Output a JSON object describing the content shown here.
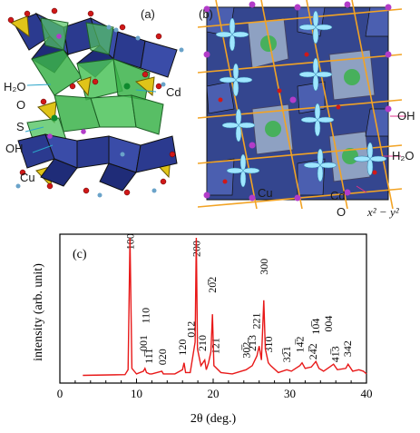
{
  "panel_a": {
    "label": "(a)",
    "annotations": {
      "h2o": "H₂O",
      "o": "O",
      "s": "S",
      "oh": "OH",
      "cu": "Cu",
      "cd": "Cd"
    }
  },
  "panel_b": {
    "label": "(b)",
    "annotations": {
      "oh": "OH",
      "h2o": "H₂O",
      "cu": "Cu",
      "cd": "Cd",
      "o": "O",
      "orbital": "x² − y²"
    }
  },
  "colors": {
    "cu_octahedra": "#2b3a8f",
    "cd_polyhedra": "#3bb34a",
    "s_tetrahedra": "#e0c419",
    "oxygen": "#d01818",
    "hydrogen": "#6aa3c9",
    "oh_atom": "#b23cc9",
    "orbital_lines": "#f2a324",
    "orbital_lobes": "#9fe6ff",
    "xrd_trace": "#e81818"
  },
  "chart_data": {
    "type": "line",
    "panel_label": "(c)",
    "xlabel": "2θ (deg.)",
    "ylabel": "intensity (arb. unit)",
    "xlim": [
      0,
      40
    ],
    "ylim": [
      0,
      1
    ],
    "xticks": [
      0,
      10,
      20,
      30,
      40
    ],
    "series": [
      {
        "points": [
          [
            3,
            0.01
          ],
          [
            8.5,
            0.015
          ],
          [
            8.9,
            0.05
          ],
          [
            9.15,
            1.0
          ],
          [
            9.4,
            0.06
          ],
          [
            10,
            0.02
          ],
          [
            10.9,
            0.04
          ],
          [
            11.1,
            0.06
          ],
          [
            11.3,
            0.03
          ],
          [
            11.7,
            0.02
          ],
          [
            12,
            0.02
          ],
          [
            13.3,
            0.04
          ],
          [
            13.5,
            0.02
          ],
          [
            15,
            0.02
          ],
          [
            16,
            0.05
          ],
          [
            16.2,
            0.1
          ],
          [
            16.4,
            0.03
          ],
          [
            17,
            0.03
          ],
          [
            17.65,
            0.25
          ],
          [
            17.8,
            1.0
          ],
          [
            17.95,
            0.2
          ],
          [
            18.4,
            0.08
          ],
          [
            18.9,
            0.12
          ],
          [
            19.1,
            0.05
          ],
          [
            19.4,
            0.1
          ],
          [
            19.7,
            0.18
          ],
          [
            19.9,
            0.45
          ],
          [
            20.1,
            0.08
          ],
          [
            21,
            0.03
          ],
          [
            22.5,
            0.02
          ],
          [
            24.3,
            0.05
          ],
          [
            25.1,
            0.08
          ],
          [
            25.7,
            0.15
          ],
          [
            26,
            0.22
          ],
          [
            26.3,
            0.12
          ],
          [
            26.6,
            0.55
          ],
          [
            26.8,
            0.2
          ],
          [
            27.2,
            0.1
          ],
          [
            27.5,
            0.08
          ],
          [
            28.5,
            0.03
          ],
          [
            29.6,
            0.05
          ],
          [
            30.2,
            0.04
          ],
          [
            31.3,
            0.08
          ],
          [
            31.6,
            0.1
          ],
          [
            32,
            0.06
          ],
          [
            32.8,
            0.07
          ],
          [
            33.4,
            0.11
          ],
          [
            33.8,
            0.06
          ],
          [
            34.4,
            0.04
          ],
          [
            35.2,
            0.07
          ],
          [
            35.7,
            0.09
          ],
          [
            36.2,
            0.05
          ],
          [
            37.3,
            0.06
          ],
          [
            37.6,
            0.09
          ],
          [
            38.2,
            0.04
          ],
          [
            39,
            0.05
          ],
          [
            39.6,
            0.04
          ],
          [
            40,
            0.02
          ]
        ]
      }
    ],
    "peak_labels": [
      {
        "text": "100",
        "x": 9.15,
        "y": 0.9
      },
      {
        "text": "001",
        "x": 10.9,
        "y": 0.17
      },
      {
        "text": "110",
        "x": 11.2,
        "y": 0.37
      },
      {
        "text": "11̅1",
        "x": 11.6,
        "y": 0.08
      },
      {
        "text": "020",
        "x": 13.4,
        "y": 0.07
      },
      {
        "text": "120",
        "x": 16.0,
        "y": 0.14
      },
      {
        "text": "012",
        "x": 17.1,
        "y": 0.27
      },
      {
        "text": "200",
        "x": 17.8,
        "y": 0.85
      },
      {
        "text": "210",
        "x": 18.6,
        "y": 0.17
      },
      {
        "text": "20̅2",
        "x": 19.9,
        "y": 0.59
      },
      {
        "text": "121",
        "x": 20.3,
        "y": 0.15
      },
      {
        "text": "30̅2",
        "x": 24.3,
        "y": 0.12
      },
      {
        "text": "21̅3",
        "x": 25.1,
        "y": 0.17
      },
      {
        "text": "221",
        "x": 25.6,
        "y": 0.33
      },
      {
        "text": "300",
        "x": 26.6,
        "y": 0.72
      },
      {
        "text": "310",
        "x": 27.2,
        "y": 0.16
      },
      {
        "text": "32̅1",
        "x": 29.6,
        "y": 0.09
      },
      {
        "text": "14̅2",
        "x": 31.3,
        "y": 0.16
      },
      {
        "text": "24̅2",
        "x": 33.0,
        "y": 0.11
      },
      {
        "text": "10̅4",
        "x": 33.4,
        "y": 0.29
      },
      {
        "text": "004",
        "x": 35.0,
        "y": 0.31
      },
      {
        "text": "41̅3",
        "x": 35.9,
        "y": 0.09
      },
      {
        "text": "342",
        "x": 37.5,
        "y": 0.13
      }
    ]
  }
}
